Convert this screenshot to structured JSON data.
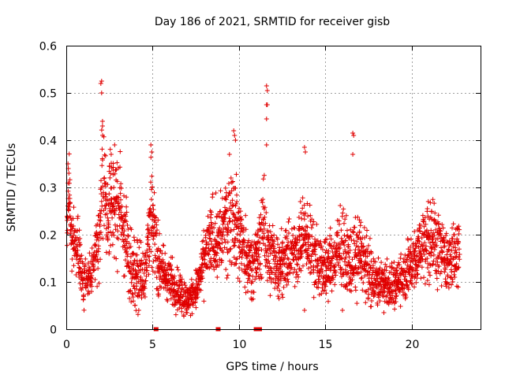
{
  "chart_data": {
    "type": "scatter",
    "title": "Day 186 of 2021, SRMTID for receiver gisb",
    "xlabel": "GPS time / hours",
    "ylabel": "SRMTID / TECUs",
    "xlim": [
      0,
      24
    ],
    "ylim": [
      0,
      0.6
    ],
    "xticks": [
      0,
      5,
      10,
      15,
      20
    ],
    "xtick_labels": [
      "0",
      "5",
      "10",
      "15",
      "20"
    ],
    "yticks": [
      0,
      0.1,
      0.2,
      0.3,
      0.4,
      0.5,
      0.6
    ],
    "ytick_labels": [
      "0",
      "0.1",
      "0.2",
      "0.3",
      "0.4",
      "0.5",
      "0.6"
    ],
    "grid": true,
    "marker": "plus",
    "color": "#e00000",
    "gap_markers_x": [
      5.2,
      8.8,
      11.0,
      11.2
    ],
    "profile": {
      "x": [
        0.0,
        0.15,
        0.3,
        0.6,
        1.0,
        1.5,
        1.9,
        2.1,
        2.4,
        2.8,
        3.2,
        3.6,
        4.0,
        4.5,
        4.9,
        5.1,
        5.4,
        6.0,
        6.6,
        7.0,
        7.3,
        7.7,
        8.1,
        8.5,
        8.8,
        9.2,
        9.6,
        10.0,
        10.5,
        11.0,
        11.5,
        11.8,
        12.2,
        12.7,
        13.2,
        13.7,
        14.1,
        14.6,
        15.0,
        15.6,
        16.0,
        16.5,
        17.0,
        17.5,
        18.0,
        18.5,
        19.0,
        19.5,
        20.0,
        20.5,
        21.0,
        21.5,
        22.0,
        22.5,
        22.8
      ],
      "y": [
        0.15,
        0.3,
        0.2,
        0.17,
        0.1,
        0.12,
        0.2,
        0.33,
        0.25,
        0.28,
        0.24,
        0.15,
        0.12,
        0.11,
        0.25,
        0.2,
        0.13,
        0.1,
        0.08,
        0.06,
        0.07,
        0.1,
        0.16,
        0.2,
        0.18,
        0.22,
        0.25,
        0.2,
        0.14,
        0.15,
        0.22,
        0.15,
        0.14,
        0.15,
        0.16,
        0.2,
        0.18,
        0.14,
        0.13,
        0.15,
        0.17,
        0.14,
        0.17,
        0.12,
        0.1,
        0.1,
        0.09,
        0.11,
        0.14,
        0.17,
        0.2,
        0.18,
        0.14,
        0.15,
        0.2
      ],
      "spread": [
        0.02,
        0.05,
        0.04,
        0.04,
        0.03,
        0.03,
        0.05,
        0.08,
        0.06,
        0.07,
        0.06,
        0.05,
        0.04,
        0.04,
        0.06,
        0.05,
        0.04,
        0.03,
        0.03,
        0.02,
        0.02,
        0.03,
        0.04,
        0.05,
        0.05,
        0.06,
        0.07,
        0.06,
        0.04,
        0.04,
        0.06,
        0.05,
        0.04,
        0.04,
        0.04,
        0.05,
        0.05,
        0.04,
        0.04,
        0.04,
        0.05,
        0.04,
        0.05,
        0.04,
        0.03,
        0.03,
        0.03,
        0.03,
        0.04,
        0.05,
        0.06,
        0.05,
        0.04,
        0.04,
        0.05
      ]
    },
    "spikes": [
      {
        "x": 0.1,
        "y": 0.35
      },
      {
        "x": 0.12,
        "y": 0.34
      },
      {
        "x": 0.15,
        "y": 0.33
      },
      {
        "x": 2.0,
        "y": 0.52
      },
      {
        "x": 2.05,
        "y": 0.525
      },
      {
        "x": 2.05,
        "y": 0.5
      },
      {
        "x": 2.1,
        "y": 0.44
      },
      {
        "x": 2.1,
        "y": 0.43
      },
      {
        "x": 2.8,
        "y": 0.39
      },
      {
        "x": 2.6,
        "y": 0.37
      },
      {
        "x": 4.9,
        "y": 0.39
      },
      {
        "x": 4.95,
        "y": 0.375
      },
      {
        "x": 9.7,
        "y": 0.42
      },
      {
        "x": 9.75,
        "y": 0.41
      },
      {
        "x": 9.8,
        "y": 0.4
      },
      {
        "x": 11.6,
        "y": 0.515
      },
      {
        "x": 11.65,
        "y": 0.505
      },
      {
        "x": 11.6,
        "y": 0.475
      },
      {
        "x": 11.65,
        "y": 0.475
      },
      {
        "x": 11.6,
        "y": 0.445
      },
      {
        "x": 11.6,
        "y": 0.39
      },
      {
        "x": 13.8,
        "y": 0.385
      },
      {
        "x": 13.85,
        "y": 0.375
      },
      {
        "x": 16.6,
        "y": 0.415
      },
      {
        "x": 16.65,
        "y": 0.41
      },
      {
        "x": 16.6,
        "y": 0.37
      }
    ],
    "lows": [
      {
        "x": 4.2,
        "y": 0.04
      },
      {
        "x": 6.8,
        "y": 0.03
      },
      {
        "x": 7.0,
        "y": 0.035
      },
      {
        "x": 13.8,
        "y": 0.04
      },
      {
        "x": 16.0,
        "y": 0.04
      },
      {
        "x": 18.4,
        "y": 0.035
      }
    ]
  }
}
